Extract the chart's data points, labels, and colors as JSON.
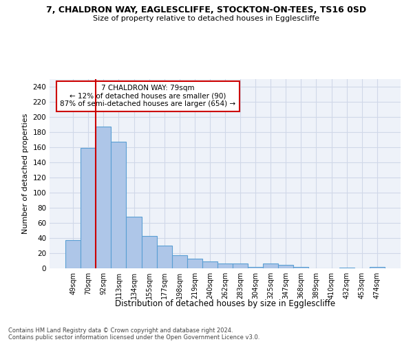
{
  "title_line1": "7, CHALDRON WAY, EAGLESCLIFFE, STOCKTON-ON-TEES, TS16 0SD",
  "title_line2": "Size of property relative to detached houses in Egglescliffe",
  "xlabel": "Distribution of detached houses by size in Egglescliffe",
  "ylabel": "Number of detached properties",
  "categories": [
    "49sqm",
    "70sqm",
    "92sqm",
    "113sqm",
    "134sqm",
    "155sqm",
    "177sqm",
    "198sqm",
    "219sqm",
    "240sqm",
    "262sqm",
    "283sqm",
    "304sqm",
    "325sqm",
    "347sqm",
    "368sqm",
    "389sqm",
    "410sqm",
    "432sqm",
    "453sqm",
    "474sqm"
  ],
  "values": [
    37,
    159,
    187,
    167,
    68,
    43,
    30,
    17,
    13,
    9,
    6,
    6,
    2,
    6,
    5,
    2,
    0,
    0,
    1,
    0,
    2
  ],
  "bar_color": "#aec6e8",
  "bar_edge_color": "#5a9fd4",
  "vline_x": 1.5,
  "vline_color": "#cc0000",
  "annotation_text": "7 CHALDRON WAY: 79sqm\n← 12% of detached houses are smaller (90)\n87% of semi-detached houses are larger (654) →",
  "annotation_box_color": "#ffffff",
  "annotation_box_edge_color": "#cc0000",
  "ylim": [
    0,
    250
  ],
  "yticks": [
    0,
    20,
    40,
    60,
    80,
    100,
    120,
    140,
    160,
    180,
    200,
    220,
    240
  ],
  "footer": "Contains HM Land Registry data © Crown copyright and database right 2024.\nContains public sector information licensed under the Open Government Licence v3.0.",
  "grid_color": "#d0d8e8",
  "background_color": "#eef2f9"
}
